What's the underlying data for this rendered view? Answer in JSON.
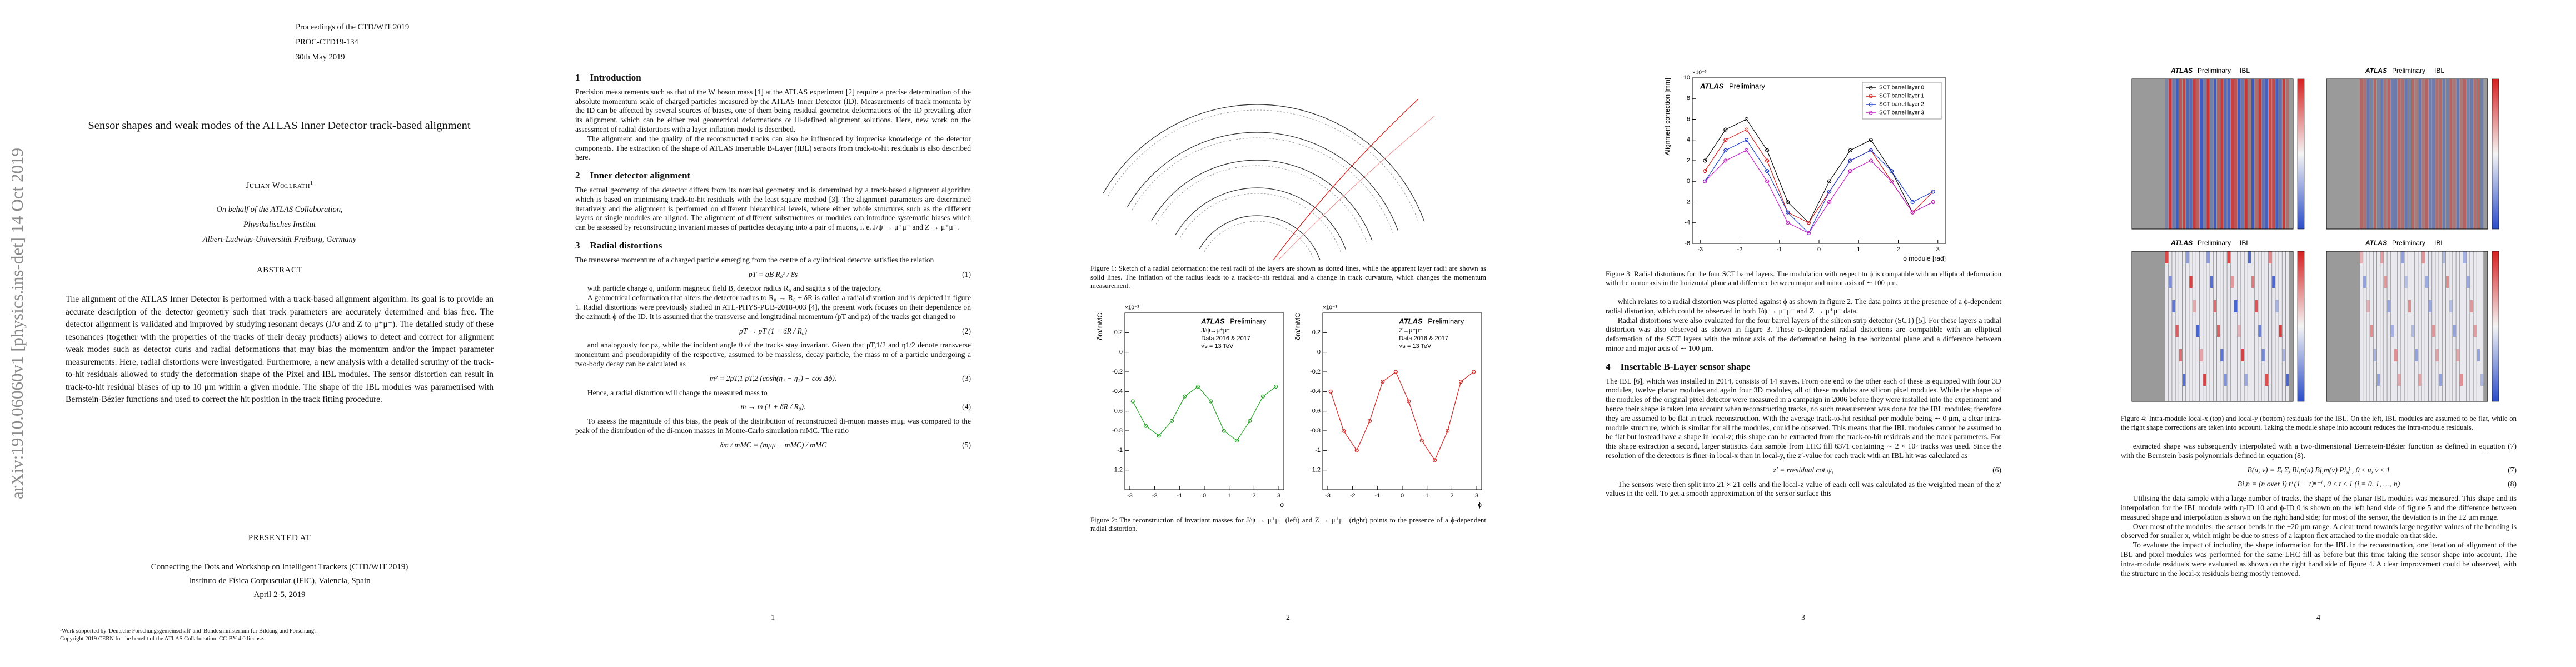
{
  "arxiv_stamp": "arXiv:1910.06060v1 [physics.ins-det] 14 Oct 2019",
  "title_page": {
    "header": [
      "Proceedings of the CTD/WIT 2019",
      "PROC-CTD19-134",
      "30th May 2019"
    ],
    "title": "Sensor shapes and weak modes of the ATLAS Inner Detector track-based alignment",
    "author": "Julian Wollrath",
    "author_note": "1",
    "affiliation": [
      "On behalf of the ATLAS Collaboration,",
      "Physikalisches Institut",
      "Albert-Ludwigs-Universität Freiburg, Germany"
    ],
    "abstract_heading": "ABSTRACT",
    "abstract": "The alignment of the ATLAS Inner Detector is performed with a track-based alignment algorithm. Its goal is to provide an accurate description of the detector geometry such that track parameters are accurately determined and bias free. The detector alignment is validated and improved by studying resonant decays (J/ψ and Z to μ⁺μ⁻). The detailed study of these resonances (together with the properties of the tracks of their decay products) allows to detect and correct for alignment weak modes such as detector curls and radial deformations that may bias the momentum and/or the impact parameter measurements. Here, radial distortions were investigated. Furthermore, a new analysis with a detailed scrutiny of the track-to-hit residuals allowed to study the deformation shape of the Pixel and IBL modules. The sensor distortion can result in track-to-hit residual biases of up to 10 μm within a given module. The shape of the IBL modules was parametrised with Bernstein-Bézier functions and used to correct the hit position in the track fitting procedure.",
    "presented_heading": "PRESENTED AT",
    "conference": [
      "Connecting the Dots and Workshop on Intelligent Trackers (CTD/WIT 2019)",
      "Instituto de Física Corpuscular (IFIC), Valencia, Spain",
      "April 2-5, 2019"
    ],
    "footnotes": [
      "¹Work supported by 'Deutsche Forschungsgemeinschaft' and 'Bundesministerium für Bildung und Forschung'.",
      "Copyright 2019 CERN for the benefit of the ATLAS Collaboration. CC-BY-4.0 license."
    ]
  },
  "pages": [
    {
      "number": "1",
      "blocks": [
        {
          "type": "heading",
          "number": "1",
          "title": "Introduction"
        },
        {
          "type": "text",
          "text": "Precision measurements such as that of the W boson mass [1] at the ATLAS experiment [2] require a precise determination of the absolute momentum scale of charged particles measured by the ATLAS Inner Detector (ID). Measurements of track momenta by the ID can be affected by several sources of biases, one of them being residual geometric deformations of the ID prevailing after its alignment, which can be either real geometrical deformations or ill-defined alignment solutions. Here, new work on the assessment of radial distortions with a layer inflation model is described."
        },
        {
          "type": "text",
          "text": "The alignment and the quality of the reconstructed tracks can also be influenced by imprecise knowledge of the detector components. The extraction of the shape of ATLAS Insertable B-Layer (IBL) sensors from track-to-hit residuals is also described here."
        },
        {
          "type": "heading",
          "number": "2",
          "title": "Inner detector alignment"
        },
        {
          "type": "text",
          "text": "The actual geometry of the detector differs from its nominal geometry and is determined by a track-based alignment algorithm which is based on minimising track-to-hit residuals with the least square method [3]. The alignment parameters are determined iteratively and the alignment is performed on different hierarchical levels, where either whole structures such as the different layers or single modules are aligned. The alignment of different substructures or modules can introduce systematic biases which can be assessed by reconstructing invariant masses of particles decaying into a pair of muons, i. e. J/ψ → μ⁺μ⁻ and Z → μ⁺μ⁻."
        },
        {
          "type": "heading",
          "number": "3",
          "title": "Radial distortions"
        },
        {
          "type": "text",
          "text": "The transverse momentum of a charged particle emerging from the centre of a cylindrical detector satisfies the relation"
        },
        {
          "type": "equation",
          "expr": "pT = qB R₀² / 8s",
          "label": "(1)"
        },
        {
          "type": "text",
          "text": "with particle charge q, uniform magnetic field B, detector radius R₀ and sagitta s of the trajectory."
        },
        {
          "type": "text",
          "text": "A geometrical deformation that alters the detector radius to R₀ → R₀ + δR is called a radial distortion and is depicted in figure 1. Radial distortions were previously studied in ATL-PHYS-PUB-2018-003 [4], the present work focuses on their dependence on the azimuth ϕ of the ID. It is assumed that the transverse and longitudinal momentum (pT and pz) of the tracks get changed to"
        },
        {
          "type": "equation",
          "expr": "pT → pT (1 + δR / R₀)",
          "label": "(2)"
        },
        {
          "type": "text",
          "text": "and analogously for pz, while the incident angle θ of the tracks stay invariant. Given that pT,1/2 and η1/2 denote transverse momentum and pseudorapidity of the respective, assumed to be massless, decay particle, the mass m of a particle undergoing a two-body decay can be calculated as"
        },
        {
          "type": "equation",
          "expr": "m² = 2pT,1 pT,2 (cosh(η₁ − η₂) − cos Δϕ).",
          "label": "(3)"
        },
        {
          "type": "text",
          "text": "Hence, a radial distortion will change the measured mass to"
        },
        {
          "type": "equation",
          "expr": "m → m (1 + δR / R₀).",
          "label": "(4)"
        },
        {
          "type": "text",
          "text": "To assess the magnitude of this bias, the peak of the distribution of reconstructed di-muon masses mμμ was compared to the peak of the distribution of the di-muon masses in Monte-Carlo simulation mMC. The ratio"
        },
        {
          "type": "equation",
          "expr": "δm / mMC = (mμμ − mMC) / mMC",
          "label": "(5)"
        }
      ]
    },
    {
      "number": "2",
      "blocks": [
        {
          "type": "sketch",
          "caption": "Figure 1: Sketch of a radial deformation: the real radii of the layers are shown as dotted lines, while the apparent layer radii are shown as solid lines. The inflation of the radius leads to a track-to-hit residual and a change in track curvature, which changes the momentum measurement."
        },
        {
          "type": "figure",
          "charts": [
            {
              "type": "line",
              "experiment": "ATLAS",
              "status": "Preliminary",
              "annotations": [
                "J/ψ→μ⁺μ⁻",
                "Data 2016 & 2017",
                "√s = 13 TeV"
              ],
              "multiplier": "×10⁻³",
              "xlabel": "ϕ",
              "ylabel": "δm/mMC",
              "x": [
                -2.88,
                -2.36,
                -1.83,
                -1.31,
                -0.79,
                -0.26,
                0.26,
                0.79,
                1.31,
                1.83,
                2.36,
                2.88
              ],
              "xlim": [
                -3.2,
                3.2
              ],
              "xticks": [
                -3,
                -2,
                -1,
                0,
                1,
                2,
                3
              ],
              "ylim": [
                -1.4,
                0.4
              ],
              "yticks": [
                -1.2,
                -1,
                -0.8,
                -0.6,
                -0.4,
                -0.2,
                0,
                0.2
              ],
              "series": [
                {
                  "color": "#22a322",
                  "values": [
                    -0.5,
                    -0.75,
                    -0.85,
                    -0.7,
                    -0.45,
                    -0.35,
                    -0.5,
                    -0.8,
                    -0.9,
                    -0.7,
                    -0.45,
                    -0.35
                  ]
                }
              ]
            },
            {
              "type": "line",
              "experiment": "ATLAS",
              "status": "Preliminary",
              "annotations": [
                "Z→μ⁺μ⁻",
                "Data 2016 & 2017",
                "√s = 13 TeV"
              ],
              "multiplier": "×10⁻³",
              "xlabel": "ϕ",
              "ylabel": "δm/mMC",
              "x": [
                -2.88,
                -2.36,
                -1.83,
                -1.31,
                -0.79,
                -0.26,
                0.26,
                0.79,
                1.31,
                1.83,
                2.36,
                2.88
              ],
              "xlim": [
                -3.2,
                3.2
              ],
              "xticks": [
                -3,
                -2,
                -1,
                0,
                1,
                2,
                3
              ],
              "ylim": [
                -1.4,
                0.4
              ],
              "yticks": [
                -1.2,
                -1,
                -0.8,
                -0.6,
                -0.4,
                -0.2,
                0,
                0.2
              ],
              "series": [
                {
                  "color": "#d42020",
                  "values": [
                    -0.4,
                    -0.8,
                    -1.0,
                    -0.7,
                    -0.3,
                    -0.2,
                    -0.5,
                    -0.9,
                    -1.1,
                    -0.8,
                    -0.3,
                    -0.2
                  ]
                }
              ]
            }
          ],
          "caption": "Figure 2: The reconstruction of invariant masses for J/ψ → μ⁺μ⁻ (left) and Z → μ⁺μ⁻ (right) points to the presence of a ϕ-dependent radial distortion."
        }
      ]
    },
    {
      "number": "3",
      "blocks": [
        {
          "type": "figure",
          "charts": [
            {
              "type": "line",
              "experiment": "ATLAS",
              "status": "Preliminary",
              "annotations": [],
              "multiplier": "×10⁻³",
              "xlabel": "ϕ module [rad]",
              "ylabel": "Alignment correction [mm]",
              "legend": "upper right",
              "x": [
                -2.88,
                -2.36,
                -1.83,
                -1.31,
                -0.79,
                -0.26,
                0.26,
                0.79,
                1.31,
                1.83,
                2.36,
                2.88
              ],
              "xlim": [
                -3.2,
                3.2
              ],
              "xticks": [
                -3,
                -2,
                -1,
                0,
                1,
                2,
                3
              ],
              "ylim": [
                -6,
                10
              ],
              "yticks": [
                -6,
                -4,
                -2,
                0,
                2,
                4,
                6,
                8,
                10
              ],
              "series": [
                {
                  "name": "SCT barrel layer 0",
                  "color": "#111111",
                  "values": [
                    2,
                    5,
                    6,
                    3,
                    -2,
                    -4,
                    0,
                    3,
                    4,
                    1,
                    -3,
                    -2
                  ]
                },
                {
                  "name": "SCT barrel layer 1",
                  "color": "#d42020",
                  "values": [
                    1,
                    4,
                    5,
                    2,
                    -3,
                    -4,
                    -1,
                    2,
                    3,
                    0,
                    -3,
                    -1
                  ]
                },
                {
                  "name": "SCT barrel layer 2",
                  "color": "#2040c8",
                  "values": [
                    0,
                    3,
                    4,
                    1,
                    -3,
                    -5,
                    -1,
                    2,
                    3,
                    1,
                    -2,
                    -1
                  ]
                },
                {
                  "name": "SCT barrel layer 3",
                  "color": "#c020c0",
                  "values": [
                    0,
                    2,
                    3,
                    0,
                    -4,
                    -5,
                    -2,
                    1,
                    2,
                    0,
                    -3,
                    -2
                  ]
                }
              ]
            }
          ],
          "caption": "Figure 3: Radial distortions for the four SCT barrel layers. The modulation with respect to ϕ is compatible with an elliptical deformation with the minor axis in the horizontal plane and difference between major and minor axis of ∼ 100 μm."
        },
        {
          "type": "text",
          "text": "which relates to a radial distortion was plotted against ϕ as shown in figure 2. The data points at the presence of a ϕ-dependent radial distortion, which could be observed in both J/ψ → μ⁺μ⁻ and Z → μ⁺μ⁻ data."
        },
        {
          "type": "text",
          "text": "Radial distortions were also evaluated for the four barrel layers of the silicon strip detector (SCT) [5]. For these layers a radial distortion was also observed as shown in figure 3. These ϕ-dependent radial distortions are compatible with an elliptical deformation of the SCT layers with the minor axis of the deformation being in the horizontal plane and a difference between minor and major axis of ∼ 100 μm."
        },
        {
          "type": "heading",
          "number": "4",
          "title": "Insertable B-Layer sensor shape"
        },
        {
          "type": "text",
          "text": "The IBL [6], which was installed in 2014, consists of 14 staves. From one end to the other each of these is equipped with four 3D modules, twelve planar modules and again four 3D modules, all of these modules are silicon pixel modules. While the shapes of the modules of the original pixel detector were measured in a campaign in 2006 before they were installed into the experiment and hence their shape is taken into account when reconstructing tracks, no such measurement was done for the IBL modules; therefore they are assumed to be flat in track reconstruction. With the average track-to-hit residual per module being ∼ 0 μm, a clear intra-module structure, which is similar for all the modules, could be observed. This means that the IBL modules cannot be assumed to be flat but instead have a shape in local-z; this shape can be extracted from the track-to-hit residuals and the track parameters. For this shape extraction a second, larger statistics data sample from LHC fill 6371 containing ∼ 2 × 10⁶ tracks was used. Since the resolution of the detectors is finer in local-x than in local-y, the z′-value for each track with an IBL hit was calculated as"
        },
        {
          "type": "equation",
          "expr": "z′ = rresidual cot ψ,",
          "label": "(6)"
        },
        {
          "type": "text",
          "text": "The sensors were then split into 21 × 21 cells and the local-z value of each cell was calculated as the weighted mean of the z′ values in the cell. To get a smooth approximation of the sensor surface this"
        }
      ]
    },
    {
      "number": "4",
      "blocks": [
        {
          "type": "heatmaps",
          "panels": [
            {
              "experiment": "ATLAS",
              "status": "Preliminary",
              "detector": "IBL"
            },
            {
              "experiment": "ATLAS",
              "status": "Preliminary",
              "detector": "IBL"
            },
            {
              "experiment": "ATLAS",
              "status": "Preliminary",
              "detector": "IBL"
            },
            {
              "experiment": "ATLAS",
              "status": "Preliminary",
              "detector": "IBL"
            }
          ],
          "caption": "Figure 4: Intra-module local-x (top) and local-y (bottom) residuals for the IBL. On the left, IBL modules are assumed to be flat, while on the right shape corrections are taken into account. Taking the module shape into account reduces the intra-module residuals."
        },
        {
          "type": "text",
          "text": "extracted shape was subsequently interpolated with a two-dimensional Bernstein-Bézier function as defined in equation (7) with the Bernstein basis polynomials defined in equation (8)."
        },
        {
          "type": "equation",
          "expr": "B(u, v) = Σᵢ Σⱼ Bi,n(u) Bj,m(v) Pi,j ,   0 ≤ u, v ≤ 1",
          "label": "(7)"
        },
        {
          "type": "equation",
          "expr": "Bi,n = (n over i) tⁱ (1 − t)ⁿ⁻ⁱ ,   0 ≤ t ≤ 1   (i = 0, 1, …, n)",
          "label": "(8)"
        },
        {
          "type": "text",
          "text": "Utilising the data sample with a large number of tracks, the shape of the planar IBL modules was measured. This shape and its interpolation for the IBL module with η-ID 10 and ϕ-ID 0 is shown on the left hand side of figure 5 and the difference between measured shape and interpolation is shown on the right hand side; for most of the sensor, the deviation is in the ±2 μm range."
        },
        {
          "type": "text",
          "text": "Over most of the modules, the sensor bends in the ±20 μm range. A clear trend towards large negative values of the bending is observed for smaller x, which might be due to stress of a kapton flex attached to the module on that side."
        },
        {
          "type": "text",
          "text": "To evaluate the impact of including the shape information for the IBL in the reconstruction, one iteration of alignment of the IBL and pixel modules was performed for the same LHC fill as before but this time taking the sensor shape into account. The intra-module residuals were evaluated as shown on the right hand side of figure 4. A clear improvement could be observed, with the structure in the local-x residuals being mostly removed."
        }
      ]
    }
  ]
}
